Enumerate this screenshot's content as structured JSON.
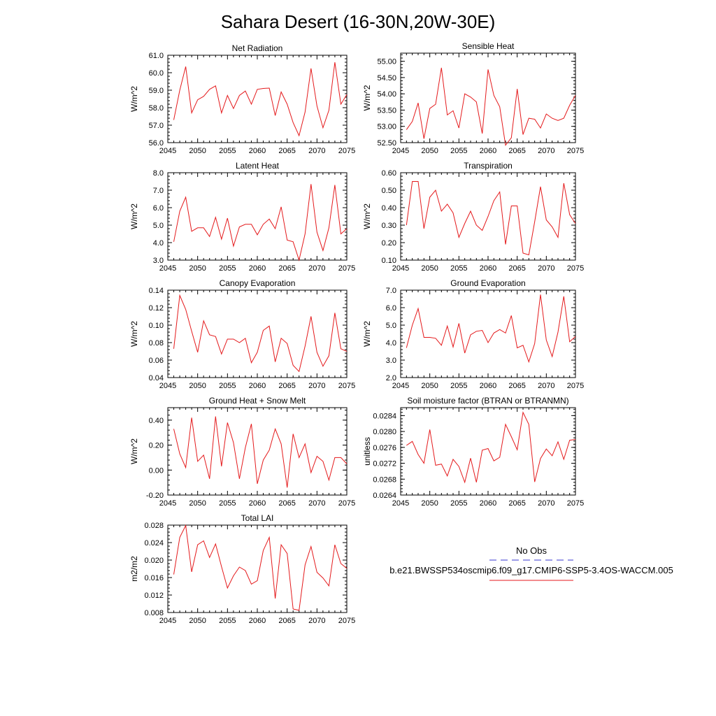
{
  "title": "Sahara Desert (16-30N,20W-30E)",
  "legend": {
    "obs_label": "No Obs",
    "case_label": "b.e21.BWSSP534oscmip6.f09_g17.CMIP6-SSP5-3.4OS-WACCM.005",
    "obs_color": "#3a3ad0",
    "case_color": "#e41a1c"
  },
  "chart_data": [
    {
      "type": "line",
      "title": "Net Radiation",
      "ylabel": "W/m^2",
      "xlim": [
        2045,
        2075
      ],
      "xticks": [
        2045,
        2050,
        2055,
        2060,
        2065,
        2070,
        2075
      ],
      "ylim": [
        56.0,
        61.0
      ],
      "yticks": [
        "56.0",
        "57.0",
        "58.0",
        "59.0",
        "60.0",
        "61.0"
      ],
      "ytick_values": [
        56,
        57,
        58,
        59,
        60,
        61
      ],
      "x": [
        2046,
        2047,
        2048,
        2049,
        2050,
        2051,
        2052,
        2053,
        2054,
        2055,
        2056,
        2057,
        2058,
        2059,
        2060,
        2061,
        2062,
        2063,
        2064,
        2065,
        2066,
        2067,
        2068,
        2069,
        2070,
        2071,
        2072,
        2073,
        2074,
        2075
      ],
      "series": [
        {
          "name": "b.e21.BWSSP534oscmip6.f09_g17.CMIP6-SSP5-3.4OS-WACCM.005",
          "values": [
            57.3,
            59.0,
            60.35,
            57.7,
            58.45,
            58.65,
            59.05,
            59.25,
            57.7,
            58.7,
            57.95,
            58.7,
            58.95,
            58.2,
            59.05,
            59.1,
            59.12,
            57.55,
            58.9,
            58.2,
            57.15,
            56.4,
            57.75,
            60.25,
            58.1,
            56.85,
            57.85,
            60.6,
            58.2,
            58.75
          ]
        }
      ]
    },
    {
      "type": "line",
      "title": "Sensible Heat",
      "ylabel": "W/m^2",
      "xlim": [
        2045,
        2075
      ],
      "xticks": [
        2045,
        2050,
        2055,
        2060,
        2065,
        2070,
        2075
      ],
      "ylim": [
        52.5,
        55.25
      ],
      "yticks": [
        "52.50",
        "53.00",
        "53.50",
        "54.00",
        "54.50",
        "55.00"
      ],
      "ytick_values": [
        52.5,
        53.0,
        53.5,
        54.0,
        54.5,
        55.0
      ],
      "x": [
        2046,
        2047,
        2048,
        2049,
        2050,
        2051,
        2052,
        2053,
        2054,
        2055,
        2056,
        2057,
        2058,
        2059,
        2060,
        2061,
        2062,
        2063,
        2064,
        2065,
        2066,
        2067,
        2068,
        2069,
        2070,
        2071,
        2072,
        2073,
        2074,
        2075
      ],
      "series": [
        {
          "name": "b.e21.BWSSP534oscmip6.f09_g17.CMIP6-SSP5-3.4OS-WACCM.005",
          "values": [
            52.9,
            53.15,
            53.72,
            52.62,
            53.55,
            53.68,
            54.8,
            53.35,
            53.48,
            52.95,
            54.0,
            53.9,
            53.75,
            52.78,
            54.75,
            53.95,
            53.6,
            52.42,
            52.65,
            54.15,
            52.75,
            53.25,
            53.22,
            52.95,
            53.38,
            53.25,
            53.18,
            53.25,
            53.65,
            53.95
          ]
        }
      ]
    },
    {
      "type": "line",
      "title": "Latent Heat",
      "ylabel": "W/m^2",
      "xlim": [
        2045,
        2075
      ],
      "xticks": [
        2045,
        2050,
        2055,
        2060,
        2065,
        2070,
        2075
      ],
      "ylim": [
        3.0,
        8.0
      ],
      "yticks": [
        "3.0",
        "4.0",
        "5.0",
        "6.0",
        "7.0",
        "8.0"
      ],
      "ytick_values": [
        3,
        4,
        5,
        6,
        7,
        8
      ],
      "x": [
        2046,
        2047,
        2048,
        2049,
        2050,
        2051,
        2052,
        2053,
        2054,
        2055,
        2056,
        2057,
        2058,
        2059,
        2060,
        2061,
        2062,
        2063,
        2064,
        2065,
        2066,
        2067,
        2068,
        2069,
        2070,
        2071,
        2072,
        2073,
        2074,
        2075
      ],
      "series": [
        {
          "name": "b.e21.BWSSP534oscmip6.f09_g17.CMIP6-SSP5-3.4OS-WACCM.005",
          "values": [
            4.05,
            5.8,
            6.6,
            4.65,
            4.85,
            4.85,
            4.35,
            5.45,
            4.2,
            5.4,
            3.8,
            4.9,
            5.05,
            5.05,
            4.45,
            5.05,
            5.35,
            4.8,
            6.05,
            4.15,
            4.05,
            3.0,
            4.5,
            7.35,
            4.6,
            3.55,
            4.85,
            7.3,
            4.5,
            4.8
          ]
        }
      ]
    },
    {
      "type": "line",
      "title": "Transpiration",
      "ylabel": "W/m^2",
      "xlim": [
        2045,
        2075
      ],
      "xticks": [
        2045,
        2050,
        2055,
        2060,
        2065,
        2070,
        2075
      ],
      "ylim": [
        0.1,
        0.6
      ],
      "yticks": [
        "0.10",
        "0.20",
        "0.30",
        "0.40",
        "0.50",
        "0.60"
      ],
      "ytick_values": [
        0.1,
        0.2,
        0.3,
        0.4,
        0.5,
        0.6
      ],
      "x": [
        2046,
        2047,
        2048,
        2049,
        2050,
        2051,
        2052,
        2053,
        2054,
        2055,
        2056,
        2057,
        2058,
        2059,
        2060,
        2061,
        2062,
        2063,
        2064,
        2065,
        2066,
        2067,
        2068,
        2069,
        2070,
        2071,
        2072,
        2073,
        2074,
        2075
      ],
      "series": [
        {
          "name": "b.e21.BWSSP534oscmip6.f09_g17.CMIP6-SSP5-3.4OS-WACCM.005",
          "values": [
            0.3,
            0.55,
            0.55,
            0.28,
            0.46,
            0.5,
            0.38,
            0.42,
            0.37,
            0.23,
            0.31,
            0.38,
            0.3,
            0.27,
            0.35,
            0.44,
            0.49,
            0.19,
            0.41,
            0.41,
            0.14,
            0.13,
            0.32,
            0.52,
            0.33,
            0.29,
            0.23,
            0.54,
            0.36,
            0.31
          ]
        }
      ]
    },
    {
      "type": "line",
      "title": "Canopy Evaporation",
      "ylabel": "W/m^2",
      "xlim": [
        2045,
        2075
      ],
      "xticks": [
        2045,
        2050,
        2055,
        2060,
        2065,
        2070,
        2075
      ],
      "ylim": [
        0.04,
        0.14
      ],
      "yticks": [
        "0.04",
        "0.06",
        "0.08",
        "0.10",
        "0.12",
        "0.14"
      ],
      "ytick_values": [
        0.04,
        0.06,
        0.08,
        0.1,
        0.12,
        0.14
      ],
      "x": [
        2046,
        2047,
        2048,
        2049,
        2050,
        2051,
        2052,
        2053,
        2054,
        2055,
        2056,
        2057,
        2058,
        2059,
        2060,
        2061,
        2062,
        2063,
        2064,
        2065,
        2066,
        2067,
        2068,
        2069,
        2070,
        2071,
        2072,
        2073,
        2074,
        2075
      ],
      "series": [
        {
          "name": "b.e21.BWSSP534oscmip6.f09_g17.CMIP6-SSP5-3.4OS-WACCM.005",
          "values": [
            0.073,
            0.134,
            0.118,
            0.093,
            0.069,
            0.105,
            0.089,
            0.087,
            0.067,
            0.084,
            0.084,
            0.08,
            0.085,
            0.057,
            0.069,
            0.094,
            0.099,
            0.058,
            0.085,
            0.079,
            0.054,
            0.047,
            0.076,
            0.11,
            0.069,
            0.053,
            0.065,
            0.114,
            0.073,
            0.07
          ]
        }
      ]
    },
    {
      "type": "line",
      "title": "Ground Evaporation",
      "ylabel": "W/m^2",
      "xlim": [
        2045,
        2075
      ],
      "xticks": [
        2045,
        2050,
        2055,
        2060,
        2065,
        2070,
        2075
      ],
      "ylim": [
        2.0,
        7.0
      ],
      "yticks": [
        "2.0",
        "3.0",
        "4.0",
        "5.0",
        "6.0",
        "7.0"
      ],
      "ytick_values": [
        2,
        3,
        4,
        5,
        6,
        7
      ],
      "x": [
        2046,
        2047,
        2048,
        2049,
        2050,
        2051,
        2052,
        2053,
        2054,
        2055,
        2056,
        2057,
        2058,
        2059,
        2060,
        2061,
        2062,
        2063,
        2064,
        2065,
        2066,
        2067,
        2068,
        2069,
        2070,
        2071,
        2072,
        2073,
        2074,
        2075
      ],
      "series": [
        {
          "name": "b.e21.BWSSP534oscmip6.f09_g17.CMIP6-SSP5-3.4OS-WACCM.005",
          "values": [
            3.7,
            5.0,
            5.95,
            4.3,
            4.3,
            4.25,
            3.85,
            4.95,
            3.75,
            5.1,
            3.4,
            4.45,
            4.65,
            4.7,
            4.0,
            4.55,
            4.75,
            4.55,
            5.55,
            3.7,
            3.85,
            2.9,
            3.95,
            6.75,
            4.15,
            3.2,
            4.6,
            6.65,
            4.05,
            4.35
          ]
        }
      ]
    },
    {
      "type": "line",
      "title": "Ground Heat + Snow Melt",
      "ylabel": "W/m^2",
      "xlim": [
        2045,
        2075
      ],
      "xticks": [
        2045,
        2050,
        2055,
        2060,
        2065,
        2070,
        2075
      ],
      "ylim": [
        -0.2,
        0.5
      ],
      "yticks": [
        "-0.20",
        "0.00",
        "0.20",
        "0.40"
      ],
      "ytick_values": [
        -0.2,
        0.0,
        0.2,
        0.4
      ],
      "x": [
        2046,
        2047,
        2048,
        2049,
        2050,
        2051,
        2052,
        2053,
        2054,
        2055,
        2056,
        2057,
        2058,
        2059,
        2060,
        2061,
        2062,
        2063,
        2064,
        2065,
        2066,
        2067,
        2068,
        2069,
        2070,
        2071,
        2072,
        2073,
        2074,
        2075
      ],
      "series": [
        {
          "name": "b.e21.BWSSP534oscmip6.f09_g17.CMIP6-SSP5-3.4OS-WACCM.005",
          "values": [
            0.33,
            0.13,
            0.02,
            0.42,
            0.07,
            0.12,
            -0.07,
            0.43,
            0.03,
            0.38,
            0.22,
            -0.07,
            0.18,
            0.37,
            -0.11,
            0.08,
            0.16,
            0.33,
            0.21,
            -0.14,
            0.29,
            0.1,
            0.21,
            -0.02,
            0.11,
            0.07,
            -0.08,
            0.1,
            0.1,
            0.05
          ]
        }
      ]
    },
    {
      "type": "line",
      "title": "Soil moisture factor (BTRAN or BTRANMN)",
      "ylabel": "unitless",
      "xlim": [
        2045,
        2075
      ],
      "xticks": [
        2045,
        2050,
        2055,
        2060,
        2065,
        2070,
        2075
      ],
      "ylim": [
        0.0264,
        0.0286
      ],
      "yticks": [
        "0.0264",
        "0.0268",
        "0.0272",
        "0.0276",
        "0.0280",
        "0.0284"
      ],
      "ytick_values": [
        0.0264,
        0.0268,
        0.0272,
        0.0276,
        0.028,
        0.0284
      ],
      "x": [
        2046,
        2047,
        2048,
        2049,
        2050,
        2051,
        2052,
        2053,
        2054,
        2055,
        2056,
        2057,
        2058,
        2059,
        2060,
        2061,
        2062,
        2063,
        2064,
        2065,
        2066,
        2067,
        2068,
        2069,
        2070,
        2071,
        2072,
        2073,
        2074,
        2075
      ],
      "series": [
        {
          "name": "b.e21.BWSSP534oscmip6.f09_g17.CMIP6-SSP5-3.4OS-WACCM.005",
          "values": [
            0.02765,
            0.02775,
            0.02742,
            0.0272,
            0.02805,
            0.02715,
            0.02718,
            0.02688,
            0.0273,
            0.02712,
            0.02672,
            0.02733,
            0.02672,
            0.02753,
            0.02757,
            0.02726,
            0.02735,
            0.02818,
            0.02787,
            0.02754,
            0.02848,
            0.02818,
            0.02673,
            0.02732,
            0.02756,
            0.02739,
            0.02774,
            0.0273,
            0.02778,
            0.0278
          ]
        }
      ]
    },
    {
      "type": "line",
      "title": "Total LAI",
      "ylabel": "m2/m2",
      "xlim": [
        2045,
        2075
      ],
      "xticks": [
        2045,
        2050,
        2055,
        2060,
        2065,
        2070,
        2075
      ],
      "ylim": [
        0.008,
        0.028
      ],
      "yticks": [
        "0.008",
        "0.012",
        "0.016",
        "0.020",
        "0.024",
        "0.028"
      ],
      "ytick_values": [
        0.008,
        0.012,
        0.016,
        0.02,
        0.024,
        0.028
      ],
      "x": [
        2046,
        2047,
        2048,
        2049,
        2050,
        2051,
        2052,
        2053,
        2054,
        2055,
        2056,
        2057,
        2058,
        2059,
        2060,
        2061,
        2062,
        2063,
        2064,
        2065,
        2066,
        2067,
        2068,
        2069,
        2070,
        2071,
        2072,
        2073,
        2074,
        2075
      ],
      "series": [
        {
          "name": "b.e21.BWSSP534oscmip6.f09_g17.CMIP6-SSP5-3.4OS-WACCM.005",
          "values": [
            0.0167,
            0.0252,
            0.0279,
            0.0173,
            0.0235,
            0.0244,
            0.0206,
            0.0237,
            0.0185,
            0.0136,
            0.0164,
            0.0184,
            0.0176,
            0.0145,
            0.0153,
            0.0222,
            0.0252,
            0.0112,
            0.0235,
            0.0215,
            0.0088,
            0.0085,
            0.0189,
            0.0231,
            0.0172,
            0.0159,
            0.0141,
            0.0235,
            0.0192,
            0.0181
          ]
        }
      ]
    }
  ]
}
